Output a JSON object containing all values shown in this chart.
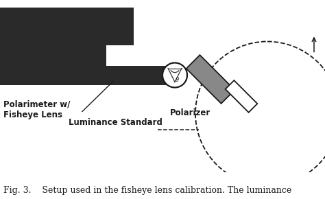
{
  "bg_color": "#ffffff",
  "caption": "Fig. 3.    Setup used in the fisheye lens calibration. The luminance",
  "caption_fontsize": 9,
  "labels": {
    "polarimeter": "Polarimeter w/\nFisheye Lens",
    "polarizer": "Polarizer",
    "luminance": "Luminance Standard"
  },
  "label_fontsize": 8.5,
  "body_color": "#2a2a2a",
  "polarizer_color": "#888888",
  "line_color": "#1a1a1a",
  "lw": 1.3
}
